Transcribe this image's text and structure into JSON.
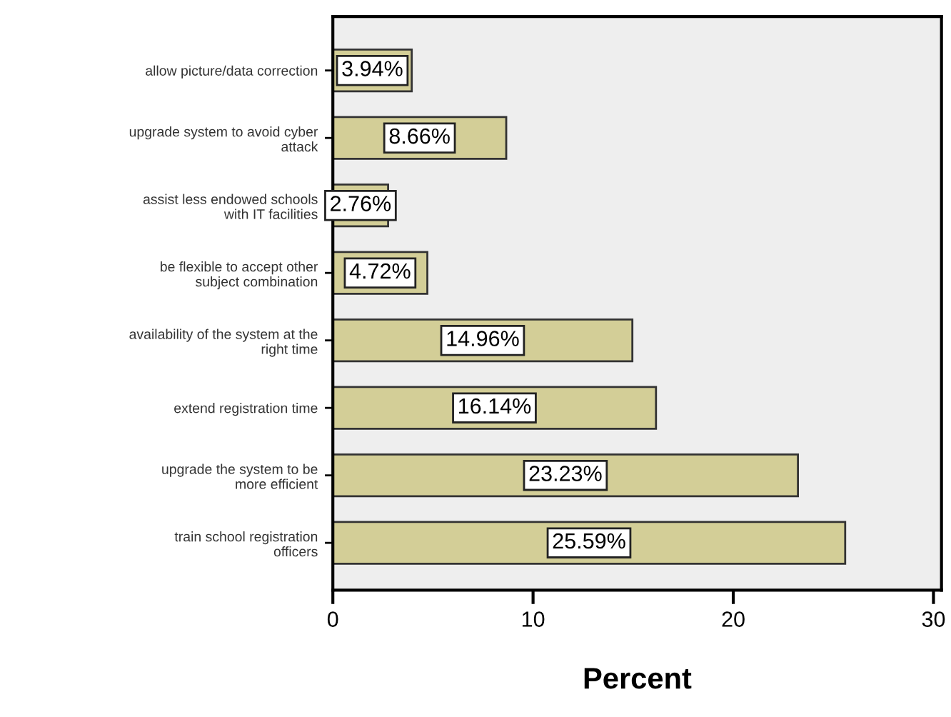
{
  "chart_data": {
    "type": "bar",
    "orientation": "horizontal",
    "categories": [
      "allow picture/data correction",
      "upgrade system to avoid cyber\nattack",
      "assist less endowed schools\nwith IT facilities",
      "be flexible to accept other\nsubject combination",
      "availability of the system at the\nright time",
      "extend registration time",
      "upgrade the system to be\nmore efficient",
      "train school registration\nofficers"
    ],
    "values": [
      3.94,
      8.66,
      2.76,
      4.72,
      14.96,
      16.14,
      23.23,
      25.59
    ],
    "value_labels": [
      "3.94%",
      "8.66%",
      "2.76%",
      "4.72%",
      "14.96%",
      "16.14%",
      "23.23%",
      "25.59%"
    ],
    "color": "#d3ce97",
    "xlabel": "Percent",
    "xlim": [
      0,
      30.4
    ],
    "xticks": [
      0,
      10,
      20,
      30
    ],
    "grid": false,
    "legend": false
  }
}
